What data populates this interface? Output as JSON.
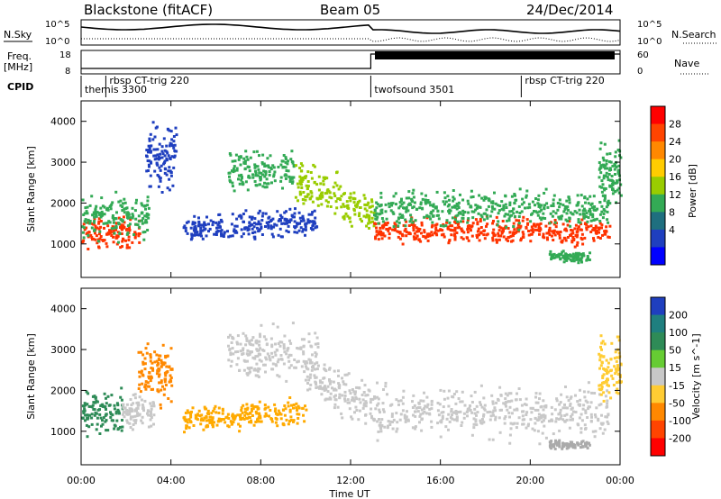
{
  "header": {
    "station": "Blackstone (fitACF)",
    "beam": "Beam 05",
    "date": "24/Dec/2014"
  },
  "noise_panel": {
    "left_label": "N.Sky",
    "right_label": "N.Search",
    "left_ticks": [
      "10^5",
      "10^0"
    ],
    "right_ticks": [
      "10^5",
      "10^0"
    ]
  },
  "freq_panel": {
    "left_label": "Freq.",
    "left_unit": "[MHz]",
    "right_label": "Nave",
    "left_ticks": [
      "18",
      "8"
    ],
    "right_ticks": [
      "60",
      "0"
    ]
  },
  "cpid": {
    "label": "CPID",
    "segments": [
      {
        "name": "themis 3300",
        "start": 0.0
      },
      {
        "name": "rbsp CT-trig 220",
        "start": 1.1
      },
      {
        "name": "twofsound 3501",
        "start": 12.9
      },
      {
        "name": "rbsp CT-trig 220",
        "start": 19.6
      }
    ]
  },
  "power_colorbar": {
    "label": "Power [dB]",
    "ticks": [
      "28",
      "24",
      "20",
      "16",
      "12",
      "8",
      "4"
    ],
    "colors": [
      "#ff0000",
      "#ff4400",
      "#ff8800",
      "#ffcc00",
      "#99cc00",
      "#33aa55",
      "#1f6f7f",
      "#1f3fbf",
      "#0000ff"
    ]
  },
  "velocity_colorbar": {
    "label": "Velocity [m s^-1]",
    "ticks": [
      "200",
      "100",
      "50",
      "15",
      "-15",
      "-50",
      "-100",
      "-200"
    ],
    "colors": [
      "#1f3fbf",
      "#1f7f7f",
      "#2e8b57",
      "#66cc33",
      "#c8c8c8",
      "#ffcc33",
      "#ff8800",
      "#ff4400",
      "#ff0000"
    ]
  },
  "chart_data": {
    "type": "heatmap",
    "xlabel": "Time UT",
    "xticks": [
      "00:00",
      "04:00",
      "08:00",
      "12:00",
      "16:00",
      "20:00",
      "00:00"
    ],
    "xlim": [
      0,
      24
    ],
    "ylabel": "Slant Range [km]",
    "ylim": [
      180,
      4500
    ],
    "yticks": [
      1000,
      2000,
      3000,
      4000
    ],
    "panels": [
      {
        "name": "Power",
        "scatter_bands": [
          {
            "t0": 0.0,
            "t1": 2.6,
            "r_center": 1300,
            "r_spread": 350,
            "slope": 0,
            "color": "#ff3300"
          },
          {
            "t0": 0.0,
            "t1": 3.0,
            "r_center": 1700,
            "r_spread": 500,
            "slope": 0,
            "color": "#33aa55"
          },
          {
            "t0": 2.8,
            "t1": 4.2,
            "r_center": 3200,
            "r_spread": 700,
            "slope": 0,
            "color": "#1f3fbf"
          },
          {
            "t0": 4.5,
            "t1": 10.5,
            "r_center": 1350,
            "r_spread": 300,
            "slope": 40,
            "color": "#1f3fbf"
          },
          {
            "t0": 6.5,
            "t1": 9.5,
            "r_center": 2800,
            "r_spread": 500,
            "slope": 0,
            "color": "#33aa55"
          },
          {
            "t0": 9.5,
            "t1": 13.0,
            "r_center": 2600,
            "r_spread": 500,
            "slope": -250,
            "color": "#99cc00"
          },
          {
            "t0": 13.0,
            "t1": 23.5,
            "r_center": 1350,
            "r_spread": 300,
            "slope": 0,
            "color": "#ff3300"
          },
          {
            "t0": 13.0,
            "t1": 23.5,
            "r_center": 1900,
            "r_spread": 400,
            "slope": 0,
            "color": "#33aa55"
          },
          {
            "t0": 20.8,
            "t1": 22.6,
            "r_center": 700,
            "r_spread": 120,
            "slope": 0,
            "color": "#33aa55"
          },
          {
            "t0": 23.0,
            "t1": 24.0,
            "r_center": 2700,
            "r_spread": 700,
            "slope": 0,
            "color": "#33aa55"
          }
        ]
      },
      {
        "name": "Velocity",
        "scatter_bands": [
          {
            "t0": 0.0,
            "t1": 1.8,
            "r_center": 1500,
            "r_spread": 500,
            "slope": 0,
            "color": "#2e8b57"
          },
          {
            "t0": 1.8,
            "t1": 3.2,
            "r_center": 1500,
            "r_spread": 400,
            "slope": 0,
            "color": "#c8c8c8"
          },
          {
            "t0": 2.5,
            "t1": 4.0,
            "r_center": 2500,
            "r_spread": 700,
            "slope": 0,
            "color": "#ff8800"
          },
          {
            "t0": 4.5,
            "t1": 10.0,
            "r_center": 1300,
            "r_spread": 300,
            "slope": 40,
            "color": "#ffaa00"
          },
          {
            "t0": 6.5,
            "t1": 10.5,
            "r_center": 2900,
            "r_spread": 600,
            "slope": 0,
            "color": "#c8c8c8"
          },
          {
            "t0": 10.0,
            "t1": 13.0,
            "r_center": 2400,
            "r_spread": 500,
            "slope": -250,
            "color": "#c8c8c8"
          },
          {
            "t0": 13.0,
            "t1": 23.5,
            "r_center": 1500,
            "r_spread": 550,
            "slope": 0,
            "color": "#c8c8c8"
          },
          {
            "t0": 20.8,
            "t1": 22.6,
            "r_center": 700,
            "r_spread": 100,
            "slope": 0,
            "color": "#aaaaaa"
          },
          {
            "t0": 23.0,
            "t1": 24.0,
            "r_center": 2500,
            "r_spread": 700,
            "slope": 0,
            "color": "#ffcc33"
          }
        ]
      }
    ]
  }
}
